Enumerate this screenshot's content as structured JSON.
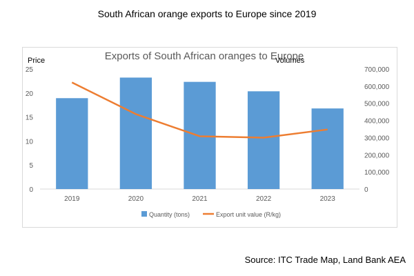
{
  "page": {
    "heading": "South African orange exports to Europe since 2019",
    "source": "Source: ITC Trade Map, Land Bank AEA"
  },
  "chart_data": {
    "type": "bar",
    "title": "Exports of South African oranges to Europe",
    "categories": [
      "2019",
      "2020",
      "2021",
      "2022",
      "2023"
    ],
    "y_left": {
      "label": "Price",
      "ylim": [
        0,
        25
      ],
      "ticks": [
        0,
        5,
        10,
        15,
        20,
        25
      ]
    },
    "y_right": {
      "label": "Volumes",
      "ylim": [
        0,
        700000
      ],
      "ticks": [
        0,
        100000,
        200000,
        300000,
        400000,
        500000,
        600000,
        700000
      ]
    },
    "series": [
      {
        "name": "Quantity (tons)",
        "kind": "bar",
        "axis": "right",
        "color": "#5b9bd5",
        "values": [
          530000,
          650000,
          625000,
          570000,
          470000
        ]
      },
      {
        "name": "Export unit value (R/kg)",
        "kind": "line",
        "axis": "left",
        "color": "#ed7d31",
        "values": [
          22.2,
          15.6,
          11.0,
          10.7,
          12.4
        ]
      }
    ],
    "legend_position": "bottom",
    "grid": false
  }
}
